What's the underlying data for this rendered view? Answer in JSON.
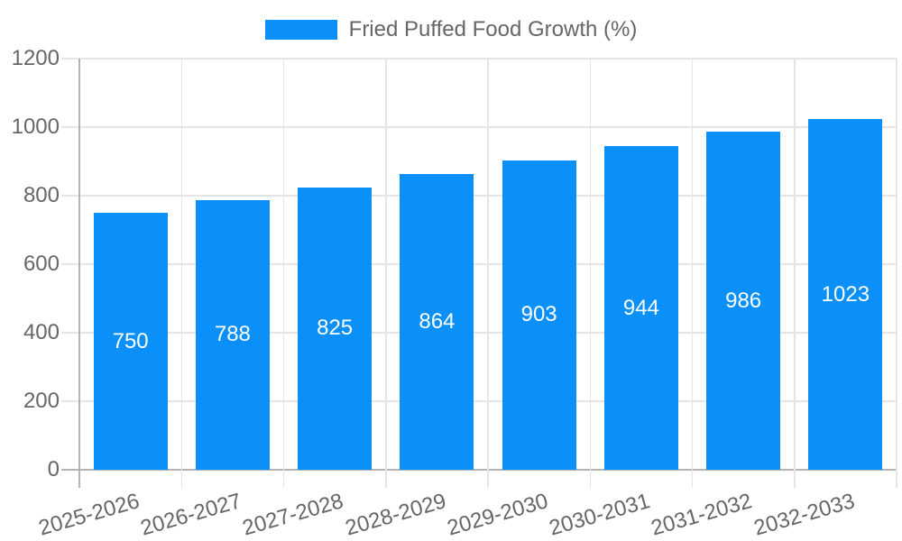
{
  "chart_data": {
    "type": "bar",
    "title": "",
    "xlabel": "",
    "ylabel": "",
    "categories": [
      "2025-2026",
      "2026-2027",
      "2027-2028",
      "2028-2029",
      "2029-2030",
      "2030-2031",
      "2031-2032",
      "2032-2033"
    ],
    "series": [
      {
        "name": "Fried Puffed Food Growth (%)",
        "values": [
          750,
          788,
          825,
          864,
          903,
          944,
          986,
          1023
        ]
      }
    ],
    "ylim": [
      0,
      1200
    ],
    "ytick_step": 200,
    "yticks": [
      0,
      200,
      400,
      600,
      800,
      1000,
      1200
    ],
    "ytick_labels": [
      "0",
      "200",
      "400",
      "600",
      "800",
      "1000",
      "1200"
    ],
    "grid": true,
    "x_label_rotation_deg": -16,
    "legend": {
      "position": "top",
      "items": [
        {
          "label": "Fried Puffed Food Growth (%)",
          "color": "#0A90F8"
        }
      ]
    },
    "value_labels": {
      "position": "center",
      "color": "#FFFFFF"
    },
    "colors": {
      "bar": "#0A90F8",
      "axis_text": "#666666",
      "gridline": "#E5E5E5",
      "axis_line": "#B3B3B3",
      "background": "#FFFFFF"
    }
  }
}
